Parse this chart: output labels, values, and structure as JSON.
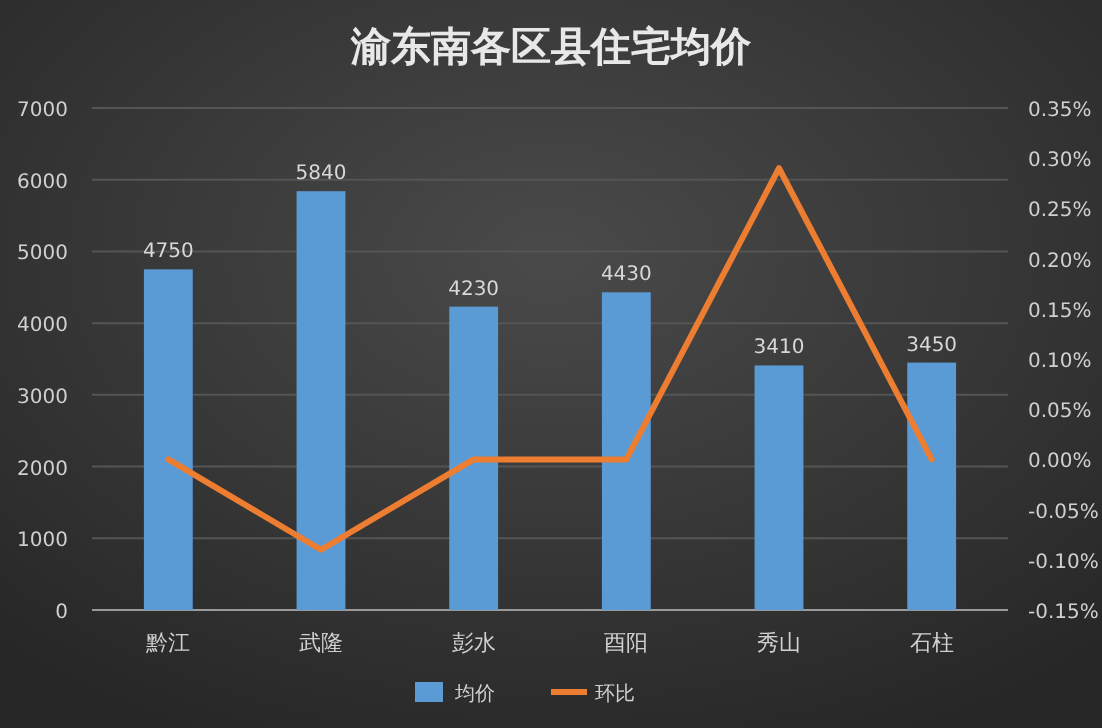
{
  "chart_data": {
    "type": "bar",
    "title": "渝东南各区县住宅均价",
    "categories": [
      "黔江",
      "武隆",
      "彭水",
      "酉阳",
      "秀山",
      "石柱"
    ],
    "series": [
      {
        "name": "均价",
        "color": "#5b9bd5",
        "values": [
          4750,
          5840,
          4230,
          4430,
          3410,
          3450
        ],
        "value_labels": [
          "4750",
          "5840",
          "4230",
          "4430",
          "3410",
          "3450"
        ]
      },
      {
        "name": "环比",
        "type": "line",
        "axis": "y2",
        "color": "#ed7d31",
        "values": [
          0,
          -0.09,
          0,
          0,
          0.29,
          0
        ]
      }
    ],
    "ylim": [
      0,
      7000
    ],
    "yticks": [
      0,
      1000,
      2000,
      3000,
      4000,
      5000,
      6000,
      7000
    ],
    "y2lim": [
      -0.15,
      0.35
    ],
    "y2ticks": [
      {
        "value": -0.15,
        "label": "-0.15%"
      },
      {
        "value": -0.1,
        "label": "-0.10%"
      },
      {
        "value": -0.05,
        "label": "-0.05%"
      },
      {
        "value": 0,
        "label": "0.00%"
      },
      {
        "value": 0.05,
        "label": "0.05%"
      },
      {
        "value": 0.1,
        "label": "0.10%"
      },
      {
        "value": 0.15,
        "label": "0.15%"
      },
      {
        "value": 0.2,
        "label": "0.20%"
      },
      {
        "value": 0.25,
        "label": "0.25%"
      },
      {
        "value": 0.3,
        "label": "0.30%"
      },
      {
        "value": 0.35,
        "label": "0.35%"
      }
    ],
    "grid": "y",
    "legend": "bottom"
  }
}
